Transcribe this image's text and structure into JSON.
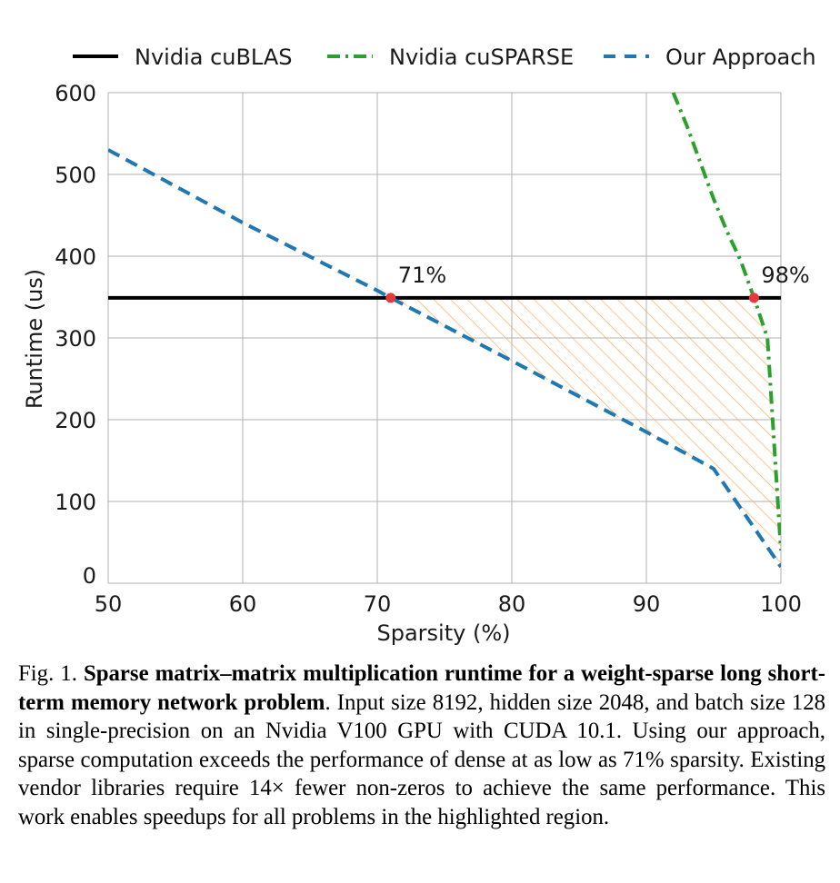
{
  "chart_data": {
    "type": "line",
    "xlabel": "Sparsity (%)",
    "ylabel": "Runtime (us)",
    "xlim": [
      50,
      100
    ],
    "ylim": [
      0,
      600
    ],
    "xticks": [
      50,
      60,
      70,
      80,
      90,
      100
    ],
    "yticks": [
      0,
      100,
      200,
      300,
      400,
      500,
      600
    ],
    "grid": true,
    "legend_position": "top",
    "series": [
      {
        "name": "Nvidia cuBLAS",
        "style": "solid",
        "color": "#000000",
        "x": [
          50,
          100
        ],
        "y": [
          349,
          349
        ]
      },
      {
        "name": "Nvidia cuSPARSE",
        "style": "dash-dot",
        "color": "#2ca02c",
        "x": [
          92,
          93,
          94,
          95,
          96,
          97,
          98,
          99,
          100
        ],
        "y": [
          600,
          560,
          515,
          470,
          430,
          395,
          349,
          300,
          40
        ]
      },
      {
        "name": "Our Approach",
        "style": "dashed",
        "color": "#1f77b4",
        "x": [
          50,
          60,
          70,
          71,
          80,
          90,
          95,
          100
        ],
        "y": [
          530,
          441,
          358,
          349,
          272,
          185,
          140,
          20
        ]
      }
    ],
    "annotations": [
      {
        "label": "71%",
        "x": 71,
        "y": 349
      },
      {
        "label": "98%",
        "x": 98,
        "y": 349
      }
    ],
    "marker_color": "#e8383d",
    "highlight_color": "#ffa64d"
  },
  "caption": {
    "prefix": "Fig. 1.",
    "bold": "Sparse matrix–matrix multiplication runtime for a weight-sparse long short-term memory network problem",
    "rest": ". Input size 8192, hidden size 2048, and batch size 128 in single-precision on an Nvidia V100 GPU with CUDA 10.1. Using our approach, sparse computation exceeds the performance of dense at as low as 71% sparsity. Existing vendor libraries require 14× fewer non-zeros to achieve the same performance. This work enables speedups for all problems in the highlighted region."
  }
}
